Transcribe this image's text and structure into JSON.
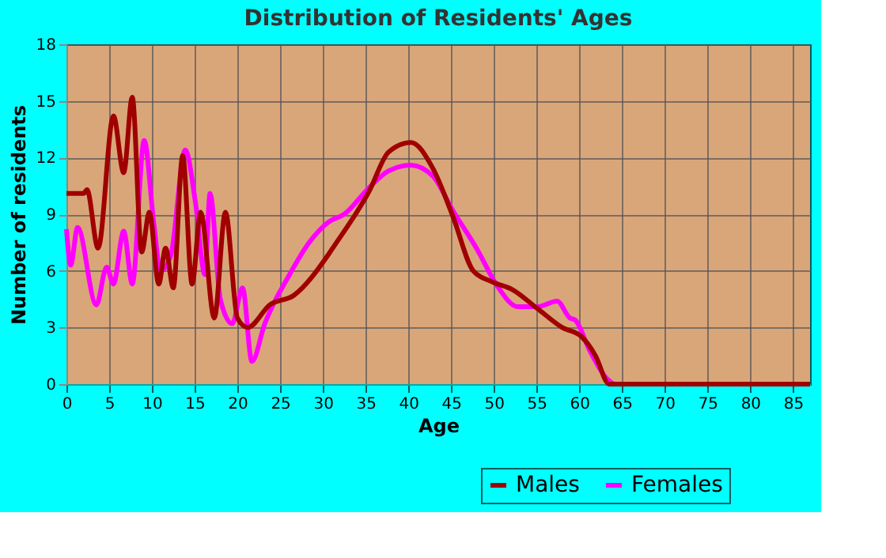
{
  "chart_data": {
    "type": "line",
    "title": "Distribution of Residents' Ages",
    "xlabel": "Age",
    "ylabel": "Number of residents",
    "xlim": [
      0,
      87
    ],
    "xticks": [
      0,
      5,
      10,
      15,
      20,
      25,
      30,
      35,
      40,
      45,
      50,
      55,
      60,
      65,
      70,
      75,
      80,
      85
    ],
    "ylim": [
      0,
      18
    ],
    "yticks": [
      0,
      3,
      6,
      9,
      12,
      15,
      18
    ],
    "grid": true,
    "legend": "bottom right",
    "line_style": "solid",
    "marker": "none",
    "series": [
      {
        "name": "Males",
        "color": "#a00000",
        "x": [
          0,
          1,
          2,
          2.4,
          3.7,
          5.5,
          6.7,
          7.7,
          8.8,
          9.7,
          10.8,
          11.6,
          12.5,
          13.6,
          14.7,
          15.7,
          17.3,
          18.6,
          20,
          21.2,
          23.8,
          26.6,
          30.7,
          31.3,
          35.4,
          37.7,
          40.3,
          42.9,
          45.2,
          47.6,
          49.9,
          52.2,
          55.1,
          58,
          60.3,
          61.9,
          63.5,
          70,
          80,
          87
        ],
        "values": [
          10.1,
          10.1,
          10.1,
          10.3,
          7.2,
          14.2,
          11.2,
          15.2,
          7,
          9.1,
          5.3,
          7.2,
          5.1,
          12.1,
          5.3,
          9.1,
          3.5,
          9.1,
          3.5,
          3,
          4.2,
          4.7,
          6.9,
          7.3,
          10.2,
          12.3,
          12.8,
          11.4,
          8.9,
          6,
          5.4,
          5,
          4,
          3,
          2.5,
          1.5,
          0,
          0,
          0,
          0
        ]
      },
      {
        "name": "Females",
        "color": "#ff00ff",
        "x": [
          0,
          0.5,
          1.3,
          3.5,
          4.7,
          5.5,
          6.7,
          7.7,
          9.1,
          10.2,
          11,
          12.2,
          13.9,
          15.1,
          16.2,
          16.8,
          18,
          19.4,
          20.6,
          21.7,
          23.2,
          26.1,
          28.4,
          30.7,
          32.5,
          35.4,
          37.7,
          40.3,
          42.9,
          45.2,
          48.1,
          50.4,
          52.8,
          55.1,
          57.4,
          58.9,
          59.5,
          61.2,
          63.2,
          64
        ],
        "values": [
          8.2,
          6.3,
          8.3,
          4.2,
          6.2,
          5.3,
          8.1,
          5.3,
          12.9,
          8.6,
          6,
          6.8,
          12.4,
          9.6,
          5.8,
          10.1,
          4.5,
          3.2,
          5.1,
          1.2,
          3.2,
          5.8,
          7.5,
          8.6,
          9,
          10.4,
          11.3,
          11.6,
          11,
          9.2,
          7.1,
          5.2,
          4.1,
          4.1,
          4.4,
          3.5,
          3.4,
          1.8,
          0.3,
          0
        ]
      }
    ]
  }
}
